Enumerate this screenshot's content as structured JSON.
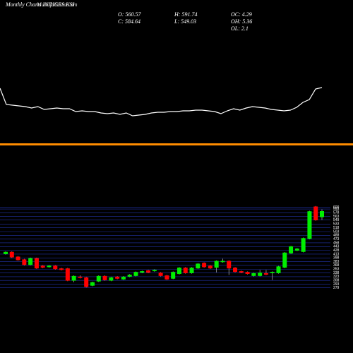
{
  "header": {
    "title": "Monthly Charts INDICES KSI",
    "watermark": "MunafaSutra.com",
    "stats": [
      "O: 560.57",
      "C: 584.64",
      "H: 591.74",
      "L: 549.03",
      "OC: 4.29",
      "OH: 5.36",
      "OL: 2.1"
    ]
  },
  "chart_data": [
    {
      "type": "line",
      "color": "#ffffff",
      "ylim": [
        30,
        80
      ],
      "values": [
        75,
        52,
        51,
        50,
        49,
        47,
        49,
        45,
        46,
        47,
        46,
        46,
        42,
        43,
        42,
        42,
        40,
        39,
        40,
        38,
        40,
        36,
        37,
        38,
        40,
        41,
        41,
        42,
        42,
        43,
        43,
        44,
        44,
        43,
        42,
        39,
        43,
        46,
        44,
        47,
        49,
        48,
        47,
        45,
        44,
        43,
        44,
        48,
        55,
        59,
        74,
        76
      ]
    },
    {
      "type": "candlestick",
      "up_color": "#00ee00",
      "down_color": "#ff0000",
      "grid": true,
      "grid_color": "#2233aa",
      "ylim": [
        272,
        610
      ],
      "yticks": [
        600,
        593,
        578,
        563,
        549,
        533,
        518,
        503,
        488,
        473,
        458,
        443,
        428,
        413,
        398,
        383,
        368,
        353,
        338,
        323,
        308,
        293,
        279
      ],
      "open": [
        413,
        422,
        403,
        392,
        370,
        397,
        367,
        361,
        367,
        356,
        356,
        307,
        323,
        320,
        287,
        304,
        326,
        307,
        323,
        312,
        323,
        326,
        339,
        348,
        345,
        339,
        328,
        315,
        334,
        359,
        337,
        356,
        378,
        367,
        359,
        381,
        386,
        359,
        345,
        342,
        326,
        326,
        337,
        337,
        337,
        359,
        416,
        427,
        422,
        474,
        603,
        560.57
      ],
      "high": [
        424,
        424,
        405,
        394,
        399,
        399,
        369,
        369,
        369,
        358,
        358,
        328,
        328,
        322,
        303,
        328,
        328,
        322,
        325,
        325,
        333,
        344,
        347,
        350,
        352,
        341,
        330,
        344,
        361,
        361,
        361,
        377,
        380,
        369,
        388,
        395,
        388,
        361,
        347,
        344,
        339,
        350,
        350,
        344,
        366,
        421,
        446,
        437,
        479,
        586,
        605,
        591.74
      ],
      "low": [
        411,
        398,
        387,
        368,
        368,
        354,
        357,
        359,
        351,
        348,
        305,
        301,
        316,
        280,
        285,
        302,
        307,
        305,
        313,
        310,
        321,
        324,
        337,
        337,
        343,
        324,
        310,
        313,
        332,
        335,
        335,
        354,
        359,
        354,
        340,
        379,
        330,
        340,
        337,
        332,
        324,
        324,
        329,
        310,
        335,
        357,
        414,
        425,
        420,
        472,
        546,
        549.03
      ],
      "close": [
        422,
        400,
        389,
        370,
        397,
        356,
        359,
        367,
        353,
        350,
        307,
        326,
        318,
        282,
        301,
        326,
        309,
        320,
        315,
        323,
        331,
        342,
        345,
        339,
        350,
        326,
        312,
        342,
        359,
        337,
        359,
        375,
        361,
        356,
        386,
        386,
        356,
        342,
        339,
        334,
        337,
        339,
        331,
        342,
        364,
        419,
        444,
        435,
        477,
        584,
        548,
        584.64
      ]
    }
  ]
}
